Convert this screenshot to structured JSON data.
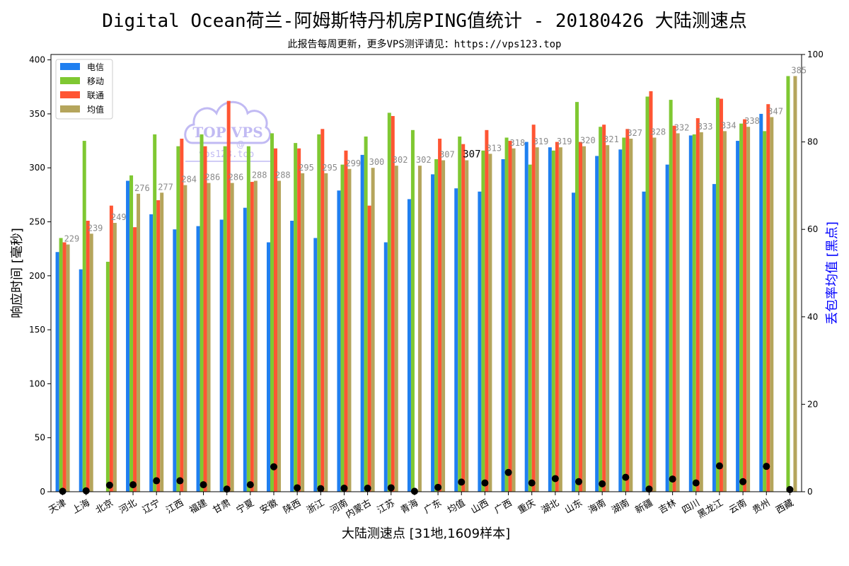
{
  "chart_data": {
    "type": "bar",
    "title": "Digital Ocean荷兰-阿姆斯特丹机房PING值统计 - 20180426 大陆测速点",
    "subtitle": "此报告每周更新，更多VPS测评请见：https://vps123.top",
    "xlabel": "大陆测速点 [31地,1609样本]",
    "ylabel": "响应时间 [毫秒]",
    "y2label": "丢包率均值 [黑点]",
    "ylim": [
      0,
      405
    ],
    "y2lim": [
      0,
      100
    ],
    "yticks": [
      0,
      50,
      100,
      150,
      200,
      250,
      300,
      350,
      400
    ],
    "y2ticks": [
      0,
      20,
      40,
      60,
      80,
      100
    ],
    "grid": false,
    "legend_position": "top-left",
    "categories": [
      "天津",
      "上海",
      "北京",
      "河北",
      "辽宁",
      "江西",
      "福建",
      "甘肃",
      "宁夏",
      "安徽",
      "陕西",
      "浙江",
      "河南",
      "内蒙古",
      "江苏",
      "青海",
      "广东",
      "均值",
      "山西",
      "广西",
      "重庆",
      "湖北",
      "山东",
      "海南",
      "湖南",
      "新疆",
      "吉林",
      "四川",
      "黑龙江",
      "云南",
      "贵州",
      "西藏"
    ],
    "series": [
      {
        "name": "电信",
        "color": "#1f7ff0",
        "values": [
          222,
          206,
          0,
          288,
          257,
          243,
          246,
          252,
          263,
          231,
          251,
          235,
          279,
          312,
          231,
          271,
          294,
          281,
          278,
          308,
          324,
          319,
          277,
          311,
          317,
          278,
          303,
          330,
          285,
          325,
          350,
          0
        ]
      },
      {
        "name": "移动",
        "color": "#7fc832",
        "values": [
          235,
          325,
          213,
          293,
          331,
          320,
          331,
          320,
          320,
          332,
          323,
          331,
          303,
          329,
          351,
          335,
          308,
          329,
          316,
          328,
          303,
          316,
          361,
          338,
          328,
          366,
          363,
          331,
          365,
          341,
          334,
          385
        ]
      },
      {
        "name": "联通",
        "color": "#ff5533",
        "values": [
          231,
          251,
          265,
          245,
          270,
          327,
          320,
          362,
          287,
          318,
          318,
          336,
          316,
          265,
          348,
          0,
          327,
          322,
          335,
          325,
          340,
          324,
          324,
          340,
          336,
          371,
          339,
          346,
          364,
          345,
          359,
          0
        ]
      },
      {
        "name": "均值",
        "color": "#b5a55c",
        "values": [
          229,
          239,
          249,
          276,
          277,
          284,
          286,
          286,
          288,
          288,
          295,
          295,
          299,
          300,
          302,
          302,
          307,
          307,
          313,
          318,
          319,
          319,
          320,
          321,
          327,
          328,
          332,
          333,
          334,
          338,
          347,
          385
        ]
      }
    ],
    "avg_labels": [
      "229",
      "239",
      "249",
      "276",
      "277",
      "284",
      "286",
      "286",
      "288",
      "288",
      "295",
      "295",
      "299",
      "300",
      "302",
      "302",
      "307",
      "307",
      "313",
      "318",
      "319",
      "319",
      "320",
      "321",
      "327",
      "328",
      "332",
      "333",
      "334",
      "338",
      "347",
      "385"
    ],
    "loss_rate": [
      0.1,
      0.2,
      1.5,
      1.6,
      2.5,
      2.5,
      1.6,
      0.6,
      1.6,
      5.7,
      0.9,
      0.7,
      0.8,
      0.8,
      0.9,
      0.1,
      1.0,
      2.2,
      2.0,
      4.4,
      2.0,
      3.0,
      2.3,
      1.8,
      3.3,
      0.6,
      2.9,
      2.0,
      5.9,
      2.3,
      5.8,
      0.5
    ],
    "loss_color": "#000000"
  },
  "watermark": {
    "brand": "TOP VPS",
    "at": "@",
    "site": "vps123.top"
  }
}
